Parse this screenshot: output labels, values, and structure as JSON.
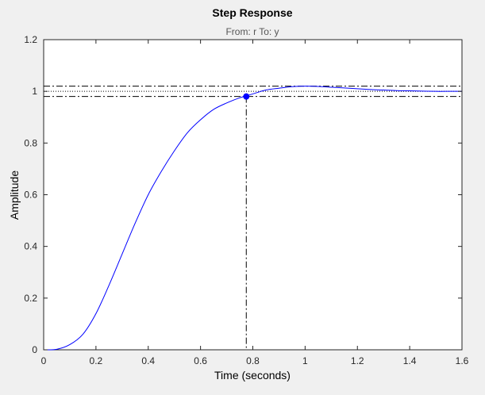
{
  "window": {
    "background": "#f0f0f0"
  },
  "chart_data": {
    "type": "line",
    "title": "Step Response",
    "subtitle": "From: r  To: y",
    "xlabel": "Time (seconds)",
    "ylabel": "Amplitude",
    "xlim": [
      0,
      1.6
    ],
    "ylim": [
      0,
      1.2
    ],
    "xticks": [
      0,
      0.2,
      0.4,
      0.6,
      0.8,
      1,
      1.2,
      1.4,
      1.6
    ],
    "xtick_labels": [
      "0",
      "0.2",
      "0.4",
      "0.6",
      "0.8",
      "1",
      "1.2",
      "1.4",
      "1.6"
    ],
    "yticks": [
      0,
      0.2,
      0.4,
      0.6,
      0.8,
      1,
      1.2
    ],
    "ytick_labels": [
      "0",
      "0.2",
      "0.4",
      "0.6",
      "0.8",
      "1",
      "1.2"
    ],
    "grid": false,
    "series": [
      {
        "color": "#0000ff",
        "x": [
          0,
          0.05,
          0.1,
          0.15,
          0.2,
          0.25,
          0.3,
          0.35,
          0.4,
          0.45,
          0.5,
          0.55,
          0.6,
          0.65,
          0.7,
          0.75,
          0.8,
          0.85,
          0.9,
          0.95,
          1.0,
          1.05,
          1.1,
          1.15,
          1.2,
          1.25,
          1.3,
          1.35,
          1.4,
          1.45,
          1.5,
          1.55,
          1.6
        ],
        "y": [
          0,
          0.002,
          0.02,
          0.06,
          0.14,
          0.25,
          0.37,
          0.49,
          0.6,
          0.69,
          0.77,
          0.84,
          0.89,
          0.93,
          0.955,
          0.975,
          0.99,
          1.005,
          1.012,
          1.018,
          1.02,
          1.019,
          1.016,
          1.013,
          1.01,
          1.007,
          1.005,
          1.003,
          1.002,
          1.001,
          1.0,
          1.0,
          1.0
        ]
      }
    ],
    "reference_lines": {
      "final_value": 1.0,
      "settling_band": [
        0.98,
        1.02
      ],
      "settling_time": 0.775,
      "line_color": "#000000"
    },
    "marker": {
      "x": 0.775,
      "y": 0.98,
      "color": "#0000ff"
    }
  }
}
